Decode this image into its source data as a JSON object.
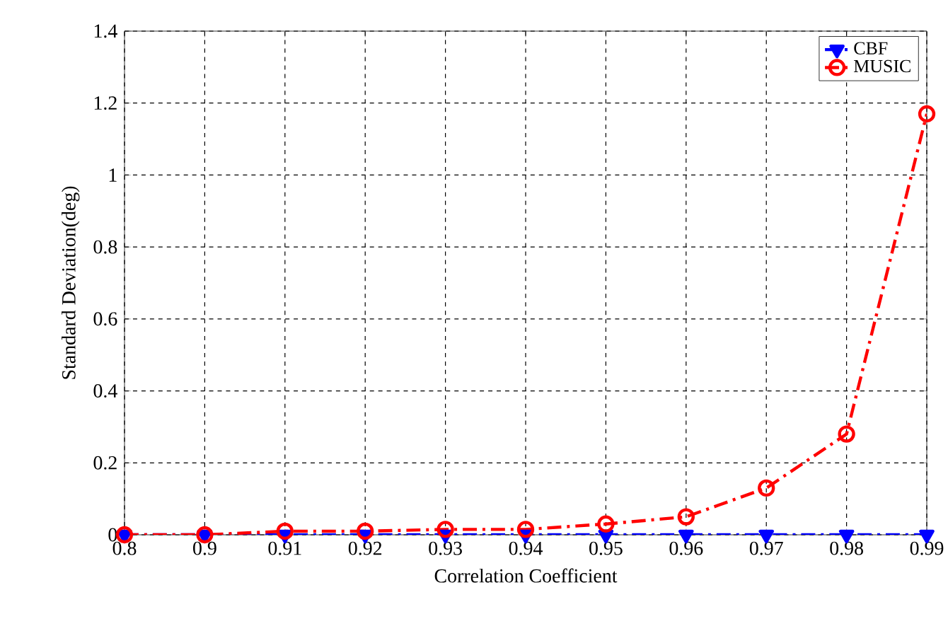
{
  "chart_data": {
    "type": "line",
    "xlabel": "Correlation Coefficient",
    "ylabel": "Standard Deviation(deg)",
    "categories": [
      "0.8",
      "0.9",
      "0.91",
      "0.92",
      "0.93",
      "0.94",
      "0.95",
      "0.96",
      "0.97",
      "0.98",
      "0.99"
    ],
    "series": [
      {
        "name": "CBF",
        "color": "#0000ff",
        "marker": "triangle",
        "line_style": "dashed",
        "values": [
          0,
          0,
          0,
          0,
          0,
          0,
          0,
          0,
          0,
          0,
          0
        ]
      },
      {
        "name": "MUSIC",
        "color": "#ff0000",
        "marker": "circle",
        "line_style": "dashed",
        "values": [
          0,
          0,
          0.01,
          0.01,
          0.015,
          0.015,
          0.03,
          0.05,
          0.13,
          0.28,
          1.17
        ]
      }
    ],
    "ylim": [
      0,
      1.4
    ],
    "yticks": [
      0,
      0.2,
      0.4,
      0.6,
      0.8,
      1,
      1.2,
      1.4
    ],
    "grid": true,
    "legend": "top right"
  }
}
